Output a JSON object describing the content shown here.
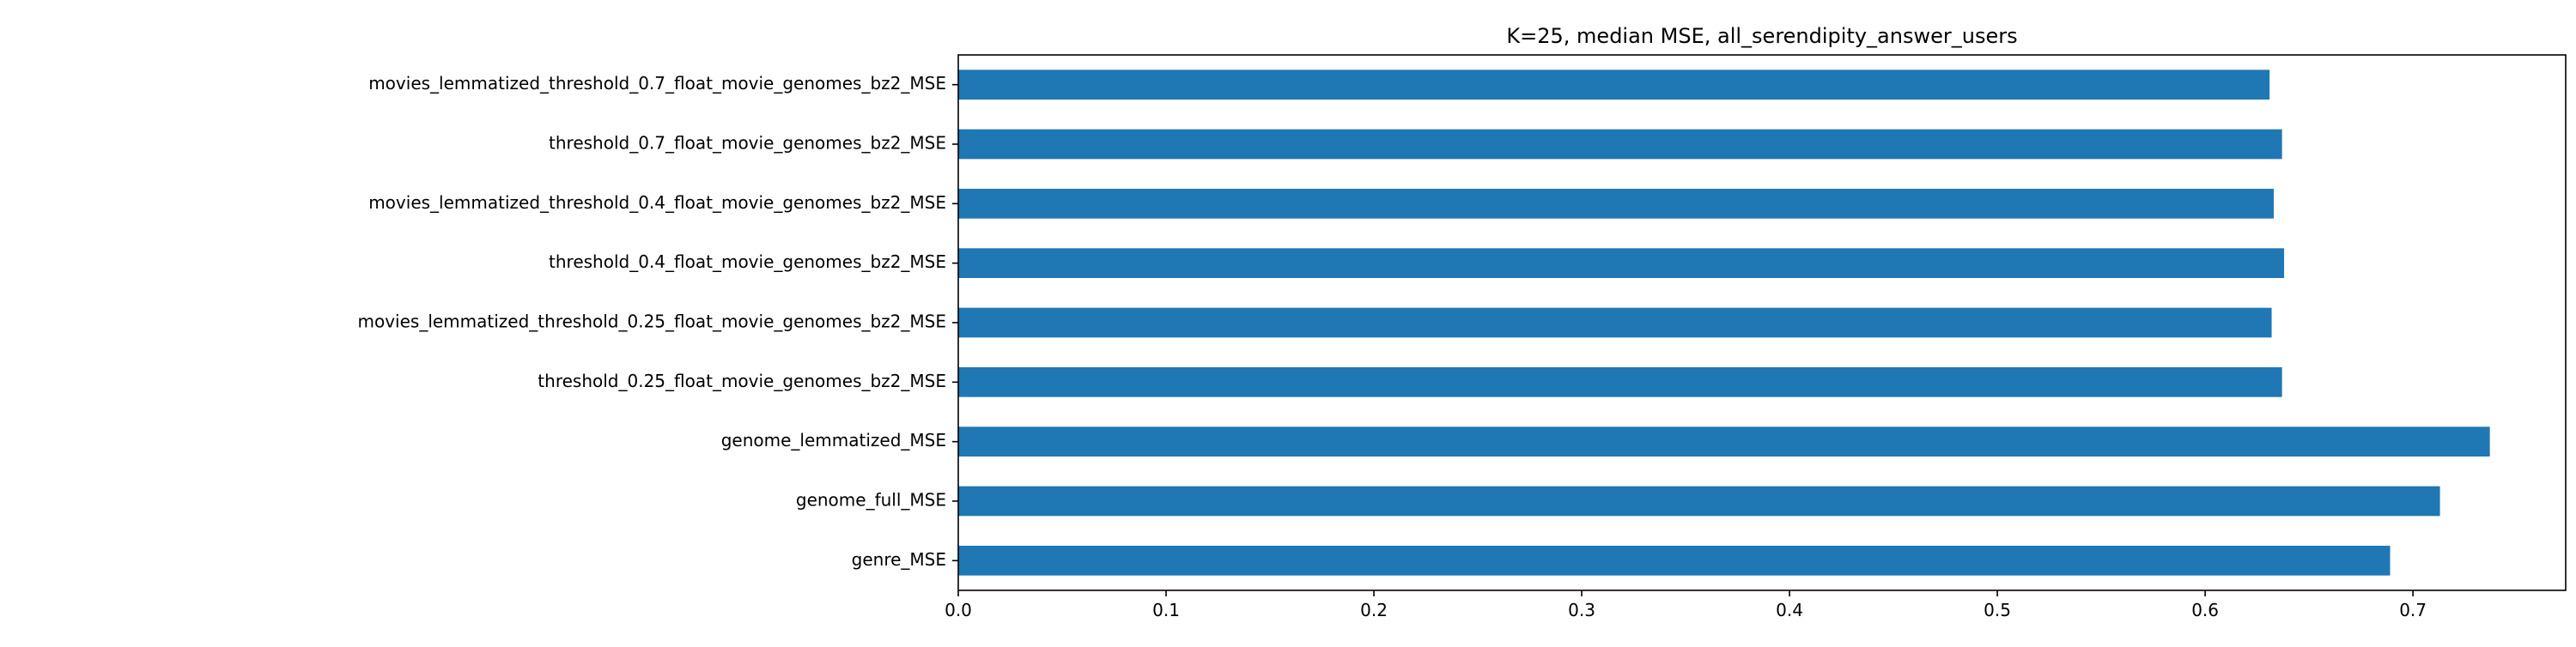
{
  "chart_data": {
    "type": "bar",
    "orientation": "horizontal",
    "title": "K=25, median MSE, all_serendipity_answer_users",
    "xlabel": "",
    "ylabel": "",
    "categories": [
      "genre_MSE",
      "genome_full_MSE",
      "genome_lemmatized_MSE",
      "threshold_0.25_float_movie_genomes_bz2_MSE",
      "movies_lemmatized_threshold_0.25_float_movie_genomes_bz2_MSE",
      "threshold_0.4_float_movie_genomes_bz2_MSE",
      "movies_lemmatized_threshold_0.4_float_movie_genomes_bz2_MSE",
      "threshold_0.7_float_movie_genomes_bz2_MSE",
      "movies_lemmatized_threshold_0.7_float_movie_genomes_bz2_MSE"
    ],
    "values": [
      0.689,
      0.713,
      0.737,
      0.637,
      0.632,
      0.638,
      0.633,
      0.637,
      0.631
    ],
    "xlim": [
      0.0,
      0.7735
    ],
    "xticks": [
      "0.0",
      "0.1",
      "0.2",
      "0.3",
      "0.4",
      "0.5",
      "0.6",
      "0.7"
    ],
    "grid": false,
    "legend": "none",
    "bar_color": "#1f77b4"
  }
}
